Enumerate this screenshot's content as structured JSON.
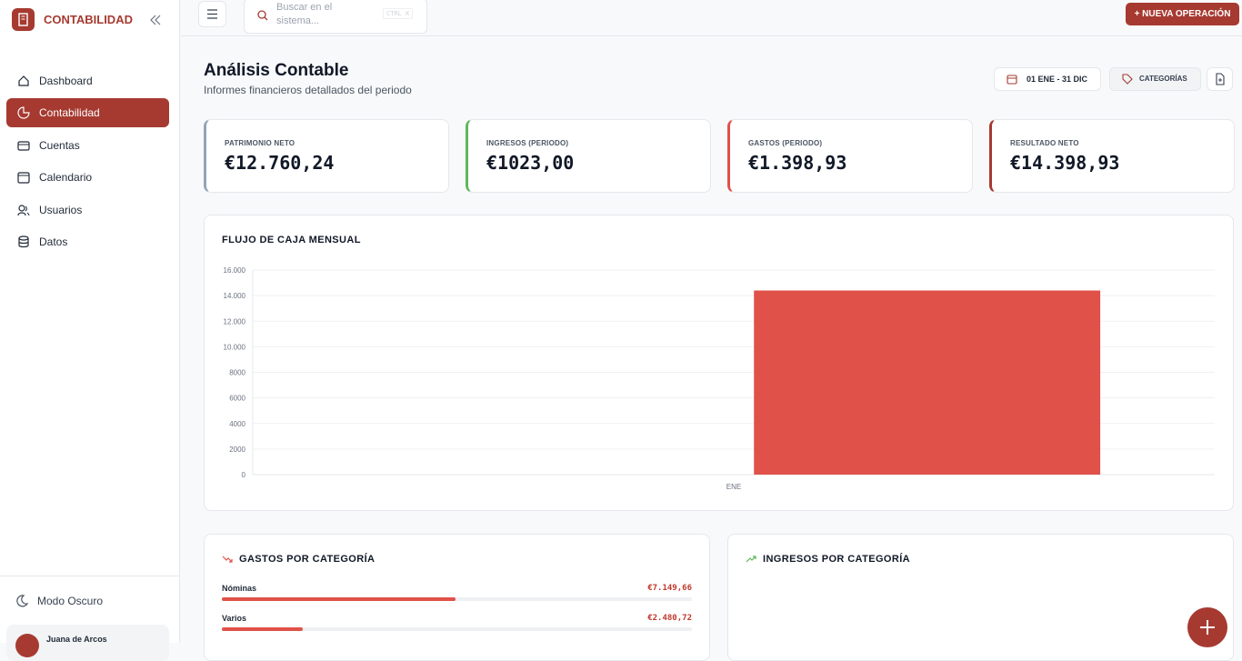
{
  "sidebar": {
    "brand": "CONTABILIDAD",
    "nav": [
      "Dashboard",
      "Contabilidad",
      "Cuentas",
      "Calendario",
      "Usuarios",
      "Datos"
    ],
    "dark_mode": "Modo Oscuro",
    "user": "Juana de Arcos"
  },
  "topbar": {
    "search_placeholder": "Buscar en el sistema...",
    "shortcut": "CTRL K",
    "new_button": "+ NUEVA OPERACIÓN"
  },
  "header": {
    "title": "Análisis Contable",
    "subtitle": "Informes financieros detallados del periodo",
    "date_range": "01 ENE - 31 DIC",
    "categories_button": "CATEGORÍAS"
  },
  "kpis": [
    {
      "label": "PATRIMONIO NETO",
      "value": 12760.24,
      "value_label": "€12.760,24",
      "color": "#94a3b8"
    },
    {
      "label": "INGRESOS (PERIODO)",
      "value": 1023,
      "value_label": "€1023,00",
      "color": "#5cb85c"
    },
    {
      "label": "GASTOS (PERIODO)",
      "value": 1398.93,
      "value_label": "€1.398,93",
      "color": "#e05149"
    },
    {
      "label": "RESULTADO NETO",
      "value": 14398.93,
      "value_label": "€14.398,93",
      "color": "#a63a31"
    }
  ],
  "chart_data": {
    "type": "bar",
    "title": "FLUJO DE CAJA MENSUAL",
    "categories": [
      "ENE"
    ],
    "values": [
      14398.93
    ],
    "color": "#e05149",
    "ylim": [
      0,
      16000
    ],
    "yticks": [
      0,
      2000,
      4000,
      6000,
      8000,
      {
        "value": 10000,
        "label": "10.000"
      },
      {
        "value": 12000,
        "label": "12.000"
      },
      {
        "value": 14000,
        "label": "14.000"
      },
      {
        "value": 16000,
        "label": "16.000"
      }
    ],
    "grid": true
  },
  "expenses": {
    "title": "GASTOS POR CATEGORÍA",
    "items": [
      {
        "name": "Nóminas",
        "value": 7149.66,
        "value_label": "€7.149,66"
      },
      {
        "name": "Varios",
        "value": 2480.72,
        "value_label": "€2.480,72"
      }
    ]
  },
  "income": {
    "title": "INGRESOS POR CATEGORÍA"
  }
}
